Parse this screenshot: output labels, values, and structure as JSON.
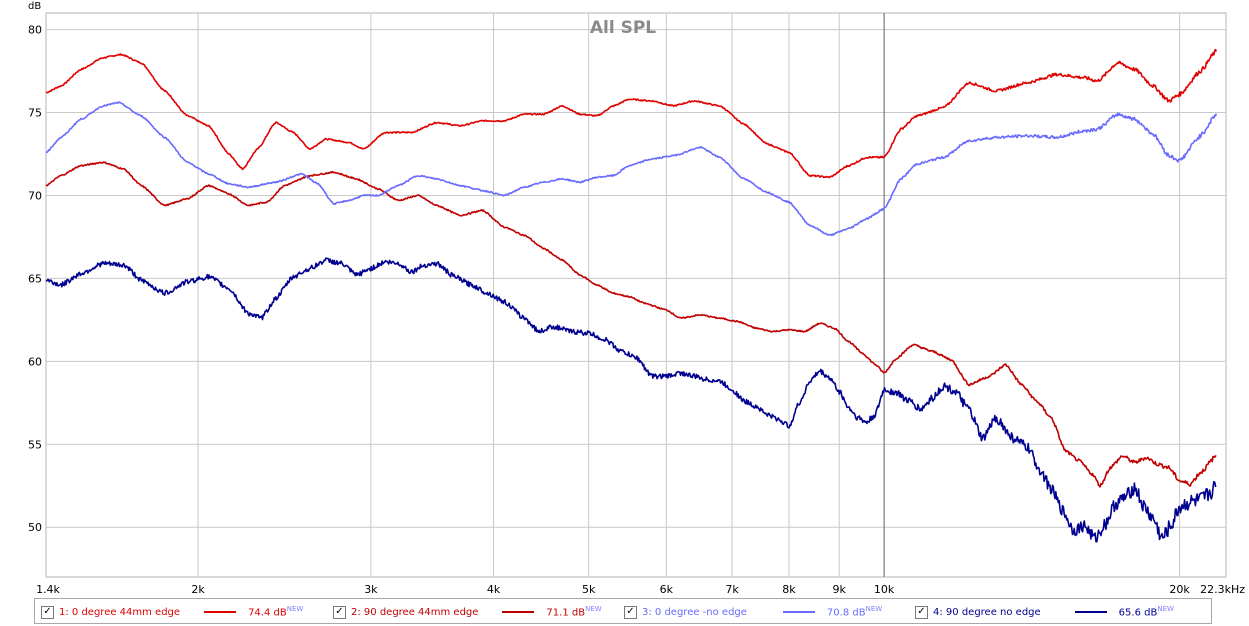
{
  "chart_data": {
    "type": "line",
    "title": "All SPL",
    "ylabel": "dB",
    "xlabel": "",
    "x_scale": "log",
    "xlim": [
      1400,
      22300
    ],
    "ylim": [
      47,
      81
    ],
    "y_ticks": [
      50,
      55,
      60,
      65,
      70,
      75,
      80
    ],
    "x_ticks": [
      {
        "v": 1400,
        "label": "1.4k"
      },
      {
        "v": 2000,
        "label": "2k"
      },
      {
        "v": 3000,
        "label": "3k"
      },
      {
        "v": 4000,
        "label": "4k"
      },
      {
        "v": 5000,
        "label": "5k"
      },
      {
        "v": 6000,
        "label": "6k"
      },
      {
        "v": 7000,
        "label": "7k"
      },
      {
        "v": 8000,
        "label": "8k"
      },
      {
        "v": 9000,
        "label": "9k"
      },
      {
        "v": 10000,
        "label": "10k"
      },
      {
        "v": 20000,
        "label": "20k"
      },
      {
        "v": 22300,
        "label": "22.3kHz"
      }
    ],
    "grid": true,
    "cursor_x": 10000,
    "series": [
      {
        "name": "1: 0 degree 44mm edge",
        "color": "#e00000",
        "noise": 0.08,
        "points": [
          [
            1400,
            76.2
          ],
          [
            1450,
            76.6
          ],
          [
            1520,
            77.6
          ],
          [
            1600,
            78.3
          ],
          [
            1670,
            78.5
          ],
          [
            1750,
            78.0
          ],
          [
            1850,
            76.3
          ],
          [
            1950,
            74.8
          ],
          [
            2050,
            74.2
          ],
          [
            2150,
            72.5
          ],
          [
            2220,
            71.6
          ],
          [
            2300,
            72.8
          ],
          [
            2400,
            74.4
          ],
          [
            2500,
            73.8
          ],
          [
            2600,
            72.8
          ],
          [
            2700,
            73.4
          ],
          [
            2850,
            73.2
          ],
          [
            2950,
            72.8
          ],
          [
            3100,
            73.8
          ],
          [
            3300,
            73.8
          ],
          [
            3500,
            74.4
          ],
          [
            3700,
            74.2
          ],
          [
            3900,
            74.5
          ],
          [
            4100,
            74.5
          ],
          [
            4300,
            74.9
          ],
          [
            4500,
            74.9
          ],
          [
            4700,
            75.4
          ],
          [
            4900,
            74.9
          ],
          [
            5100,
            74.8
          ],
          [
            5300,
            75.4
          ],
          [
            5500,
            75.8
          ],
          [
            5800,
            75.7
          ],
          [
            6100,
            75.4
          ],
          [
            6400,
            75.7
          ],
          [
            6800,
            75.4
          ],
          [
            7200,
            74.3
          ],
          [
            7600,
            73.1
          ],
          [
            8000,
            72.6
          ],
          [
            8400,
            71.2
          ],
          [
            8800,
            71.1
          ],
          [
            9200,
            71.8
          ],
          [
            9600,
            72.3
          ],
          [
            10000,
            72.3
          ],
          [
            10400,
            74.0
          ],
          [
            10800,
            74.8
          ],
          [
            11500,
            75.3
          ],
          [
            12200,
            76.8
          ],
          [
            13000,
            76.3
          ],
          [
            14000,
            76.8
          ],
          [
            15000,
            77.3
          ],
          [
            16000,
            77.1
          ],
          [
            16500,
            76.9
          ],
          [
            17300,
            78.0
          ],
          [
            18000,
            77.6
          ],
          [
            18800,
            76.6
          ],
          [
            19500,
            75.7
          ],
          [
            20000,
            76.1
          ],
          [
            21000,
            77.5
          ],
          [
            21800,
            78.7
          ]
        ]
      },
      {
        "name": "2: 90 degree 44mm edge",
        "color": "#c00000",
        "noise": 0.08,
        "points": [
          [
            1400,
            70.6
          ],
          [
            1450,
            71.2
          ],
          [
            1520,
            71.8
          ],
          [
            1600,
            72.0
          ],
          [
            1680,
            71.6
          ],
          [
            1750,
            70.6
          ],
          [
            1850,
            69.4
          ],
          [
            1950,
            69.8
          ],
          [
            2050,
            70.6
          ],
          [
            2150,
            70.1
          ],
          [
            2250,
            69.4
          ],
          [
            2350,
            69.6
          ],
          [
            2450,
            70.6
          ],
          [
            2600,
            71.2
          ],
          [
            2750,
            71.4
          ],
          [
            2900,
            71.0
          ],
          [
            3050,
            70.4
          ],
          [
            3200,
            69.7
          ],
          [
            3350,
            70.0
          ],
          [
            3500,
            69.4
          ],
          [
            3700,
            68.8
          ],
          [
            3900,
            69.1
          ],
          [
            4100,
            68.1
          ],
          [
            4300,
            67.6
          ],
          [
            4500,
            66.8
          ],
          [
            4700,
            66.1
          ],
          [
            4900,
            65.2
          ],
          [
            5100,
            64.6
          ],
          [
            5300,
            64.1
          ],
          [
            5500,
            63.9
          ],
          [
            5700,
            63.5
          ],
          [
            6000,
            63.1
          ],
          [
            6200,
            62.6
          ],
          [
            6500,
            62.8
          ],
          [
            6800,
            62.6
          ],
          [
            7100,
            62.4
          ],
          [
            7400,
            62.0
          ],
          [
            7700,
            61.8
          ],
          [
            8000,
            61.9
          ],
          [
            8300,
            61.8
          ],
          [
            8600,
            62.3
          ],
          [
            8900,
            62.0
          ],
          [
            9200,
            61.2
          ],
          [
            9500,
            60.5
          ],
          [
            9800,
            59.8
          ],
          [
            10000,
            59.3
          ],
          [
            10300,
            60.2
          ],
          [
            10700,
            61.0
          ],
          [
            11200,
            60.6
          ],
          [
            11700,
            60.1
          ],
          [
            12200,
            58.6
          ],
          [
            12800,
            59.1
          ],
          [
            13300,
            59.8
          ],
          [
            13800,
            58.6
          ],
          [
            14300,
            57.6
          ],
          [
            14800,
            56.6
          ],
          [
            15300,
            54.6
          ],
          [
            15800,
            54.0
          ],
          [
            16300,
            53.2
          ],
          [
            16600,
            52.5
          ],
          [
            17000,
            53.6
          ],
          [
            17500,
            54.3
          ],
          [
            18000,
            53.9
          ],
          [
            18500,
            54.2
          ],
          [
            19000,
            53.8
          ],
          [
            19500,
            53.6
          ],
          [
            20000,
            52.8
          ],
          [
            20500,
            52.6
          ],
          [
            21000,
            53.3
          ],
          [
            21800,
            54.3
          ]
        ]
      },
      {
        "name": "3: 0 degree -no edge",
        "color": "#6a6aff",
        "noise": 0.08,
        "points": [
          [
            1400,
            72.6
          ],
          [
            1450,
            73.5
          ],
          [
            1520,
            74.6
          ],
          [
            1600,
            75.4
          ],
          [
            1660,
            75.6
          ],
          [
            1750,
            74.8
          ],
          [
            1850,
            73.5
          ],
          [
            1950,
            72.0
          ],
          [
            2050,
            71.3
          ],
          [
            2150,
            70.7
          ],
          [
            2250,
            70.5
          ],
          [
            2400,
            70.8
          ],
          [
            2550,
            71.3
          ],
          [
            2650,
            70.7
          ],
          [
            2750,
            69.5
          ],
          [
            2850,
            69.7
          ],
          [
            2950,
            70.0
          ],
          [
            3050,
            70.0
          ],
          [
            3200,
            70.6
          ],
          [
            3350,
            71.2
          ],
          [
            3500,
            71.0
          ],
          [
            3700,
            70.6
          ],
          [
            3900,
            70.3
          ],
          [
            4100,
            70.0
          ],
          [
            4300,
            70.5
          ],
          [
            4500,
            70.8
          ],
          [
            4700,
            71.0
          ],
          [
            4900,
            70.8
          ],
          [
            5100,
            71.1
          ],
          [
            5300,
            71.2
          ],
          [
            5500,
            71.8
          ],
          [
            5800,
            72.2
          ],
          [
            6100,
            72.4
          ],
          [
            6500,
            72.9
          ],
          [
            6800,
            72.3
          ],
          [
            7200,
            71.0
          ],
          [
            7600,
            70.2
          ],
          [
            8000,
            69.6
          ],
          [
            8400,
            68.2
          ],
          [
            8800,
            67.6
          ],
          [
            9200,
            68.0
          ],
          [
            9600,
            68.6
          ],
          [
            10000,
            69.2
          ],
          [
            10400,
            71.0
          ],
          [
            10800,
            71.9
          ],
          [
            11500,
            72.3
          ],
          [
            12200,
            73.3
          ],
          [
            13000,
            73.5
          ],
          [
            14000,
            73.6
          ],
          [
            15000,
            73.5
          ],
          [
            16000,
            73.9
          ],
          [
            16500,
            74.0
          ],
          [
            17300,
            74.9
          ],
          [
            18000,
            74.6
          ],
          [
            18800,
            73.7
          ],
          [
            19500,
            72.4
          ],
          [
            20000,
            72.1
          ],
          [
            21000,
            73.6
          ],
          [
            21800,
            74.9
          ]
        ]
      },
      {
        "name": "4: 90 degree no edge",
        "color": "#000090",
        "noise": 0.3,
        "points": [
          [
            1400,
            64.9
          ],
          [
            1450,
            64.6
          ],
          [
            1520,
            65.3
          ],
          [
            1600,
            65.9
          ],
          [
            1680,
            65.8
          ],
          [
            1760,
            64.8
          ],
          [
            1850,
            64.1
          ],
          [
            1950,
            64.8
          ],
          [
            2050,
            65.1
          ],
          [
            2150,
            64.4
          ],
          [
            2250,
            62.9
          ],
          [
            2320,
            62.6
          ],
          [
            2400,
            63.8
          ],
          [
            2500,
            65.1
          ],
          [
            2600,
            65.6
          ],
          [
            2700,
            66.1
          ],
          [
            2800,
            65.9
          ],
          [
            2900,
            65.2
          ],
          [
            3000,
            65.6
          ],
          [
            3100,
            66.0
          ],
          [
            3200,
            65.9
          ],
          [
            3300,
            65.4
          ],
          [
            3400,
            65.8
          ],
          [
            3500,
            65.9
          ],
          [
            3650,
            65.1
          ],
          [
            3800,
            64.6
          ],
          [
            3950,
            64.1
          ],
          [
            4100,
            63.6
          ],
          [
            4300,
            62.6
          ],
          [
            4450,
            61.8
          ],
          [
            4600,
            62.1
          ],
          [
            4800,
            61.8
          ],
          [
            5000,
            61.7
          ],
          [
            5200,
            61.3
          ],
          [
            5400,
            60.6
          ],
          [
            5600,
            60.2
          ],
          [
            5800,
            59.1
          ],
          [
            6000,
            59.1
          ],
          [
            6200,
            59.3
          ],
          [
            6400,
            59.1
          ],
          [
            6600,
            58.9
          ],
          [
            6800,
            58.8
          ],
          [
            7000,
            58.3
          ],
          [
            7200,
            57.6
          ],
          [
            7400,
            57.3
          ],
          [
            7600,
            56.8
          ],
          [
            7800,
            56.5
          ],
          [
            8000,
            56.1
          ],
          [
            8200,
            57.5
          ],
          [
            8400,
            58.8
          ],
          [
            8600,
            59.4
          ],
          [
            8800,
            59.0
          ],
          [
            9000,
            58.2
          ],
          [
            9200,
            57.2
          ],
          [
            9400,
            56.6
          ],
          [
            9600,
            56.3
          ],
          [
            9800,
            56.8
          ],
          [
            10000,
            58.3
          ],
          [
            10300,
            58.1
          ],
          [
            10600,
            57.6
          ],
          [
            10900,
            57.1
          ],
          [
            11200,
            57.8
          ],
          [
            11500,
            58.5
          ],
          [
            11800,
            58.2
          ],
          [
            12200,
            57.1
          ],
          [
            12600,
            55.3
          ],
          [
            13000,
            56.6
          ],
          [
            13500,
            55.4
          ],
          [
            14000,
            54.8
          ],
          [
            14400,
            53.5
          ],
          [
            14800,
            52.3
          ],
          [
            15200,
            51.0
          ],
          [
            15600,
            49.8
          ],
          [
            16000,
            50.1
          ],
          [
            16400,
            49.3
          ],
          [
            16800,
            50.2
          ],
          [
            17200,
            51.4
          ],
          [
            17600,
            51.8
          ],
          [
            18000,
            52.4
          ],
          [
            18400,
            51.2
          ],
          [
            18800,
            50.5
          ],
          [
            19200,
            49.3
          ],
          [
            19600,
            50.1
          ],
          [
            20000,
            51.2
          ],
          [
            20500,
            51.5
          ],
          [
            21000,
            51.6
          ],
          [
            21800,
            52.4
          ]
        ]
      }
    ]
  },
  "legend": [
    {
      "label": "1: 0 degree 44mm edge",
      "value": "74.4 dB",
      "tag": "NEW",
      "color": "#e00000",
      "check": "✓"
    },
    {
      "label": "2: 90 degree 44mm edge",
      "value": "71.1 dB",
      "tag": "NEW",
      "color": "#c00000",
      "check": "✓"
    },
    {
      "label": "3: 0 degree -no edge",
      "value": "70.8 dB",
      "tag": "NEW",
      "color": "#6a6aff",
      "check": "✓"
    },
    {
      "label": "4: 90 degree no edge",
      "value": "65.6 dB",
      "tag": "NEW",
      "color": "#000090",
      "check": "✓"
    }
  ]
}
